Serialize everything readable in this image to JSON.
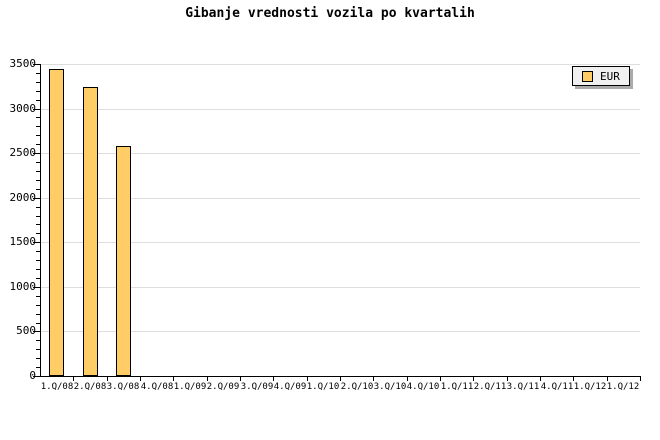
{
  "title": "Gibanje vrednosti vozila po kvartalih",
  "legend": {
    "label": "EUR"
  },
  "colors": {
    "background": "#ffffff",
    "bar_fill": "#ffcc66",
    "bar_border": "#000000",
    "grid": "#dddddd",
    "axis": "#000000",
    "legend_bg": "#f0f0f0",
    "legend_shadow": "#aaaaaa",
    "text": "#000000"
  },
  "chart_data": {
    "type": "bar",
    "title": "Gibanje vrednosti vozila po kvartalih",
    "categories": [
      "1.Q/08",
      "2.Q/08",
      "3.Q/08",
      "4.Q/08",
      "1.Q/09",
      "2.Q/09",
      "3.Q/09",
      "4.Q/09",
      "1.Q/10",
      "2.Q/10",
      "3.Q/10",
      "4.Q/10",
      "1.Q/11",
      "2.Q/11",
      "3.Q/11",
      "4.Q/11",
      "1.Q/12",
      "1.Q/12"
    ],
    "series": [
      {
        "name": "EUR",
        "values": [
          3445,
          3245,
          2580,
          null,
          null,
          null,
          null,
          null,
          null,
          null,
          null,
          null,
          null,
          null,
          null,
          null,
          null,
          null
        ]
      }
    ],
    "xlabel": "",
    "ylabel": "",
    "ylim": [
      0,
      3500
    ],
    "yticks": [
      0,
      500,
      1000,
      1500,
      2000,
      2500,
      3000,
      3500
    ],
    "minor_tick_step": 100,
    "grid": "horizontal-only",
    "legend_position": "top-right",
    "bar_color": "#ffcc66"
  }
}
